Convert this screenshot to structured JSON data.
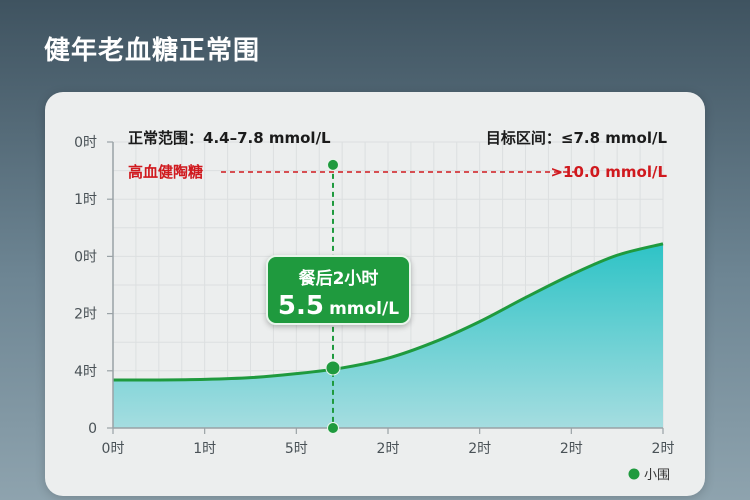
{
  "page": {
    "title": "健年老血糖正常围"
  },
  "info": {
    "normal_range": "正常范围：4.4–7.8 mmol/L",
    "target_range": "目标区间：≤7.8 mmol/L",
    "high_label": "高血健陶糖",
    "high_value": ">10.0 mmol/L"
  },
  "callout": {
    "label": "餐后2小时",
    "value": "5.5",
    "unit": "mmol/L"
  },
  "legend": {
    "label": "小围"
  },
  "colors": {
    "accent_green": "#1f9a3e",
    "alert_red": "#d0191e",
    "fill_top": "#2ec3c6",
    "fill_bottom": "#a5dde0"
  },
  "chart_data": {
    "type": "area",
    "y_ticks": [
      "0时",
      "1时",
      "0时",
      "2时",
      "4时",
      "0"
    ],
    "x_ticks": [
      "0时",
      "1时",
      "5时",
      "2时",
      "2时",
      "2时",
      "2时"
    ],
    "x": [
      0,
      0.5,
      1,
      1.5,
      2,
      2.5,
      3,
      3.5,
      4,
      4.5,
      5,
      5.5,
      6
    ],
    "values": [
      0.84,
      0.84,
      0.85,
      0.88,
      0.95,
      1.05,
      1.22,
      1.5,
      1.86,
      2.28,
      2.68,
      3.02,
      3.22
    ],
    "ylim": [
      0,
      5
    ],
    "xlim": [
      0,
      6
    ],
    "grid": true,
    "markers": [
      {
        "x": 2.4,
        "y": 1.05
      },
      {
        "x": 2.4,
        "y": 4.6
      },
      {
        "x": 2.4,
        "y": 0
      }
    ],
    "high_threshold": 4.6,
    "legend_position": "bottom-right"
  }
}
